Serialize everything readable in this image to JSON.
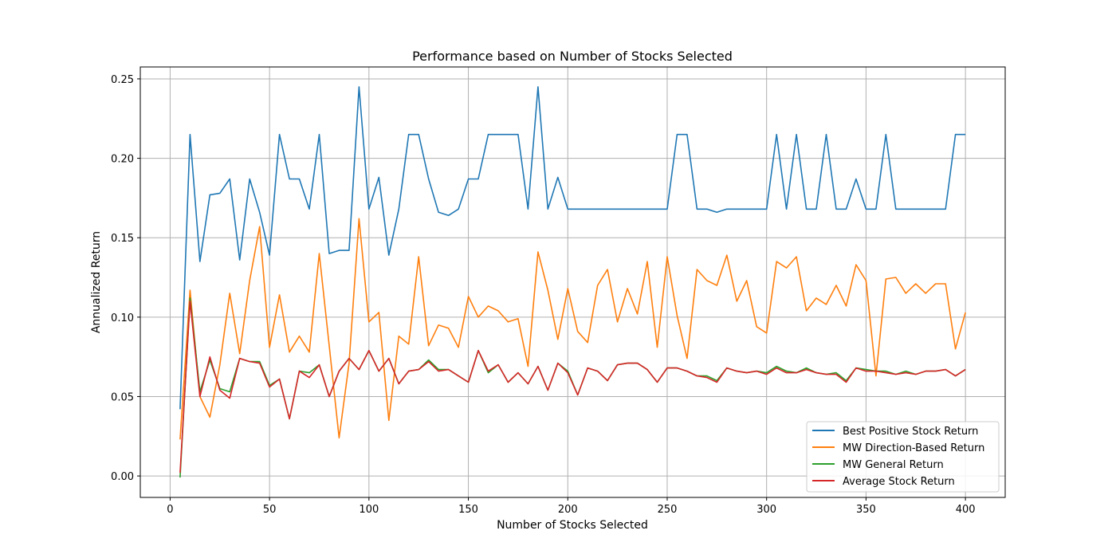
{
  "chart_data": {
    "type": "line",
    "title": "Performance based on Number of Stocks Selected",
    "xlabel": "Number of Stocks Selected",
    "ylabel": "Annualized Return",
    "xlim": [
      -15,
      420
    ],
    "ylim": [
      -0.0135,
      0.2575
    ],
    "xticks": [
      0,
      50,
      100,
      150,
      200,
      250,
      300,
      350,
      400
    ],
    "xtick_labels": [
      "0",
      "50",
      "100",
      "150",
      "200",
      "250",
      "300",
      "350",
      "400"
    ],
    "yticks": [
      0.0,
      0.05,
      0.1,
      0.15,
      0.2,
      0.25
    ],
    "ytick_labels": [
      "0.00",
      "0.05",
      "0.10",
      "0.15",
      "0.20",
      "0.25"
    ],
    "grid": true,
    "legend_position": "lower-right",
    "x": [
      5,
      10,
      15,
      20,
      25,
      30,
      35,
      40,
      45,
      50,
      55,
      60,
      65,
      70,
      75,
      80,
      85,
      90,
      95,
      100,
      105,
      110,
      115,
      120,
      125,
      130,
      135,
      140,
      145,
      150,
      155,
      160,
      165,
      170,
      175,
      180,
      185,
      190,
      195,
      200,
      205,
      210,
      215,
      220,
      225,
      230,
      235,
      240,
      245,
      250,
      255,
      260,
      265,
      270,
      275,
      280,
      285,
      290,
      295,
      300,
      305,
      310,
      315,
      320,
      325,
      330,
      335,
      340,
      345,
      350,
      355,
      360,
      365,
      370,
      375,
      380,
      385,
      390,
      395,
      400
    ],
    "series": [
      {
        "name": "Best Positive Stock Return",
        "color": "#1f77b4",
        "values": [
          0.042,
          0.215,
          0.135,
          0.177,
          0.178,
          0.187,
          0.136,
          0.187,
          0.166,
          0.139,
          0.215,
          0.187,
          0.187,
          0.168,
          0.215,
          0.14,
          0.142,
          0.142,
          0.245,
          0.168,
          0.188,
          0.139,
          0.168,
          0.215,
          0.215,
          0.187,
          0.166,
          0.164,
          0.168,
          0.187,
          0.187,
          0.215,
          0.215,
          0.215,
          0.215,
          0.168,
          0.245,
          0.168,
          0.188,
          0.168,
          0.168,
          0.168,
          0.168,
          0.168,
          0.168,
          0.168,
          0.168,
          0.168,
          0.168,
          0.168,
          0.215,
          0.215,
          0.168,
          0.168,
          0.166,
          0.168,
          0.168,
          0.168,
          0.168,
          0.168,
          0.215,
          0.168,
          0.215,
          0.168,
          0.168,
          0.215,
          0.168,
          0.168,
          0.187,
          0.168,
          0.168,
          0.215,
          0.168,
          0.168,
          0.168,
          0.168,
          0.168,
          0.168,
          0.215,
          0.215
        ]
      },
      {
        "name": "MW Direction-Based Return",
        "color": "#ff7f0e",
        "values": [
          0.023,
          0.117,
          0.05,
          0.037,
          0.07,
          0.115,
          0.077,
          0.123,
          0.157,
          0.081,
          0.114,
          0.078,
          0.088,
          0.078,
          0.14,
          0.082,
          0.024,
          0.071,
          0.162,
          0.097,
          0.103,
          0.035,
          0.088,
          0.083,
          0.138,
          0.082,
          0.095,
          0.093,
          0.081,
          0.113,
          0.1,
          0.107,
          0.104,
          0.097,
          0.099,
          0.069,
          0.141,
          0.117,
          0.086,
          0.118,
          0.091,
          0.084,
          0.12,
          0.13,
          0.097,
          0.118,
          0.102,
          0.135,
          0.081,
          0.138,
          0.101,
          0.074,
          0.13,
          0.123,
          0.12,
          0.139,
          0.11,
          0.123,
          0.094,
          0.09,
          0.135,
          0.131,
          0.138,
          0.104,
          0.112,
          0.108,
          0.12,
          0.107,
          0.133,
          0.123,
          0.063,
          0.124,
          0.125,
          0.115,
          0.121,
          0.115,
          0.121,
          0.121,
          0.08,
          0.103
        ]
      },
      {
        "name": "MW General Return",
        "color": "#2ca02c",
        "values": [
          -0.001,
          0.112,
          0.053,
          0.073,
          0.055,
          0.053,
          0.074,
          0.072,
          0.072,
          0.057,
          0.061,
          0.036,
          0.066,
          0.065,
          0.07,
          0.05,
          0.066,
          0.074,
          0.067,
          0.079,
          0.066,
          0.074,
          0.058,
          0.066,
          0.067,
          0.073,
          0.067,
          0.067,
          0.063,
          0.059,
          0.079,
          0.065,
          0.07,
          0.059,
          0.065,
          0.058,
          0.069,
          0.054,
          0.071,
          0.066,
          0.051,
          0.068,
          0.066,
          0.06,
          0.07,
          0.071,
          0.071,
          0.067,
          0.059,
          0.068,
          0.068,
          0.066,
          0.063,
          0.063,
          0.06,
          0.068,
          0.066,
          0.065,
          0.066,
          0.065,
          0.069,
          0.066,
          0.065,
          0.068,
          0.065,
          0.064,
          0.065,
          0.06,
          0.068,
          0.067,
          0.066,
          0.066,
          0.064,
          0.066,
          0.064,
          0.066,
          0.066,
          0.067,
          0.063,
          0.067
        ]
      },
      {
        "name": "Average Stock Return",
        "color": "#d62728",
        "values": [
          0.002,
          0.11,
          0.05,
          0.075,
          0.054,
          0.049,
          0.074,
          0.072,
          0.071,
          0.056,
          0.061,
          0.036,
          0.066,
          0.062,
          0.07,
          0.05,
          0.066,
          0.074,
          0.067,
          0.079,
          0.066,
          0.074,
          0.058,
          0.066,
          0.067,
          0.072,
          0.066,
          0.067,
          0.063,
          0.059,
          0.079,
          0.066,
          0.07,
          0.059,
          0.065,
          0.058,
          0.069,
          0.054,
          0.071,
          0.065,
          0.051,
          0.068,
          0.066,
          0.06,
          0.07,
          0.071,
          0.071,
          0.067,
          0.059,
          0.068,
          0.068,
          0.066,
          0.063,
          0.062,
          0.059,
          0.068,
          0.066,
          0.065,
          0.066,
          0.064,
          0.068,
          0.065,
          0.065,
          0.067,
          0.065,
          0.064,
          0.064,
          0.059,
          0.068,
          0.066,
          0.066,
          0.065,
          0.064,
          0.065,
          0.064,
          0.066,
          0.066,
          0.067,
          0.063,
          0.067
        ]
      }
    ]
  }
}
